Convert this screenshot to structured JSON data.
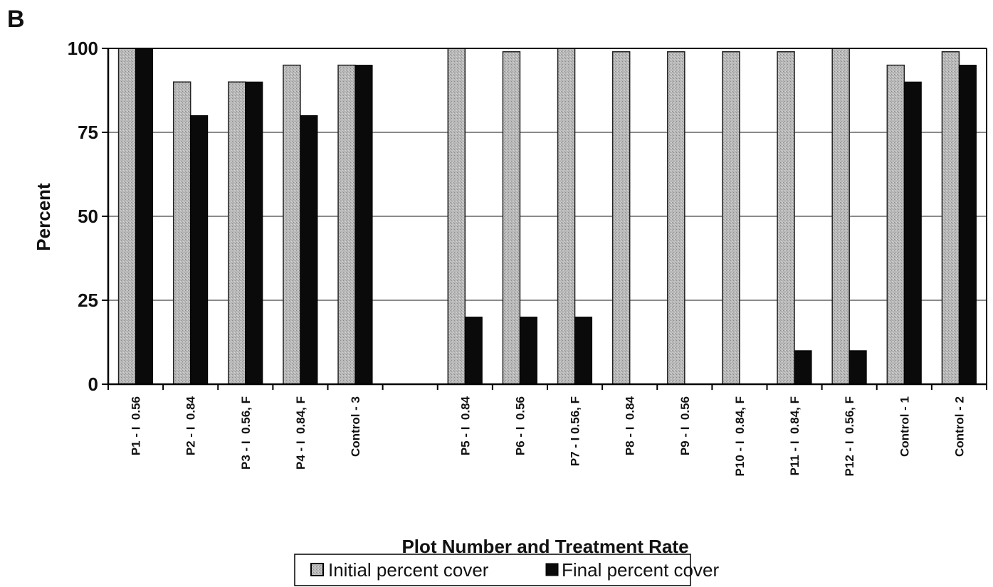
{
  "panel_label": "B",
  "chart_data": {
    "type": "bar",
    "title": "",
    "xlabel": "Plot Number and Treatment Rate",
    "ylabel": "Percent",
    "ylim": [
      0,
      100
    ],
    "yticks": [
      "0",
      "25",
      "50",
      "75",
      "100"
    ],
    "grid": true,
    "legend_position": "bottom-center",
    "categories": [
      "P1 - I  0.56",
      "P2 - I  0.84",
      "P3 - I  0.56, F",
      "P4 - I  0.84, F",
      "Control - 3",
      "",
      "P5 - I  0.84",
      "P6 - I  0.56",
      "P7 - I 0.56, F",
      "P8 - I  0.84",
      "P9 - I  0.56",
      "P10 - I  0.84, F",
      "P11 - I  0.84, F",
      "P12 - I  0.56, F",
      "Control - 1",
      "Control - 2"
    ],
    "series": [
      {
        "name": "Initial percent cover",
        "color": "#b4b4b4",
        "values": [
          100,
          90,
          90,
          95,
          95,
          null,
          100,
          99,
          100,
          99,
          99,
          99,
          99,
          100,
          95,
          99
        ]
      },
      {
        "name": "Final percent cover",
        "color": "#0a0a0a",
        "values": [
          100,
          80,
          90,
          80,
          95,
          null,
          20,
          20,
          20,
          0,
          0,
          0,
          10,
          10,
          90,
          95
        ]
      }
    ]
  }
}
